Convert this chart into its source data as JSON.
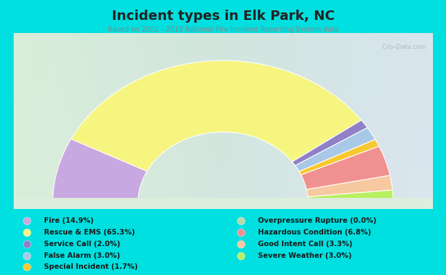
{
  "title": "Incident types in Elk Park, NC",
  "subtitle": "Based on 2002 - 2018 National Fire Incident Reporting System data",
  "bg_cyan": "#00e0e0",
  "chart_bg": "#e8efe0",
  "categories": [
    "Fire",
    "Rescue & EMS",
    "Service Call",
    "False Alarm",
    "Special Incident",
    "Overpressure Rupture",
    "Hazardous Condition",
    "Good Intent Call",
    "Severe Weather"
  ],
  "values": [
    14.9,
    65.3,
    2.0,
    3.0,
    1.7,
    0.0,
    6.8,
    3.3,
    3.0
  ],
  "colors": [
    "#c8a8e0",
    "#f5f580",
    "#9080c8",
    "#a8c8e8",
    "#f8c830",
    "#b8d8a8",
    "#f09090",
    "#f8c8a0",
    "#b8f060"
  ],
  "legend_order": [
    0,
    1,
    2,
    3,
    4,
    5,
    6,
    7,
    8
  ],
  "watermark": " City-Data.com"
}
